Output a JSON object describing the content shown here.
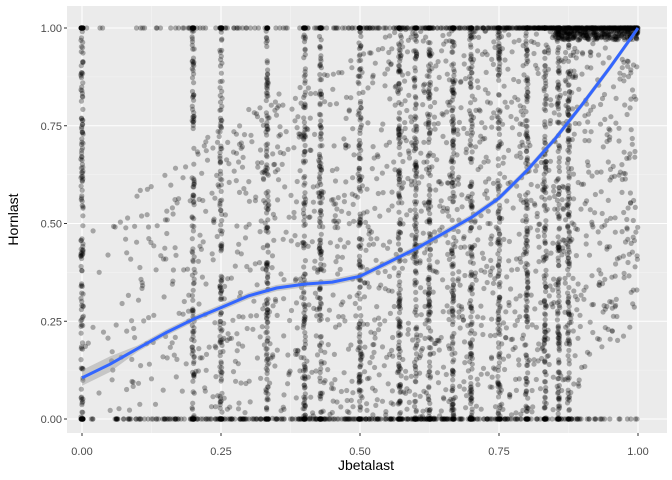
{
  "chart_data": {
    "type": "scatter",
    "xlabel": "Jbetalast",
    "ylabel": "Hornlast",
    "xlim": [
      0,
      1
    ],
    "ylim": [
      0,
      1
    ],
    "x_ticks": [
      "0.00",
      "0.25",
      "0.50",
      "0.75",
      "1.00"
    ],
    "y_ticks": [
      "0.00",
      "0.25",
      "0.50",
      "0.75",
      "1.00"
    ],
    "grid": true,
    "point_color": "#000000",
    "point_opacity": 0.3,
    "smooth_color": "#3366FF",
    "smooth_band_color": "#999999",
    "panel_background": "#EBEBEB",
    "dense_x_columns": [
      0.0,
      0.2,
      0.25,
      0.333,
      0.4,
      0.429,
      0.5,
      0.571,
      0.6,
      0.625,
      0.667,
      0.7,
      0.75,
      0.8,
      0.833,
      0.857,
      0.875
    ],
    "smooth_line": {
      "x": [
        0.0,
        0.05,
        0.1,
        0.15,
        0.2,
        0.25,
        0.3,
        0.35,
        0.4,
        0.45,
        0.5,
        0.55,
        0.6,
        0.65,
        0.7,
        0.75,
        0.8,
        0.85,
        0.9,
        0.95,
        1.0
      ],
      "y": [
        0.105,
        0.14,
        0.18,
        0.22,
        0.255,
        0.285,
        0.315,
        0.335,
        0.345,
        0.35,
        0.365,
        0.4,
        0.435,
        0.475,
        0.515,
        0.565,
        0.635,
        0.715,
        0.805,
        0.9,
        1.0
      ]
    }
  }
}
